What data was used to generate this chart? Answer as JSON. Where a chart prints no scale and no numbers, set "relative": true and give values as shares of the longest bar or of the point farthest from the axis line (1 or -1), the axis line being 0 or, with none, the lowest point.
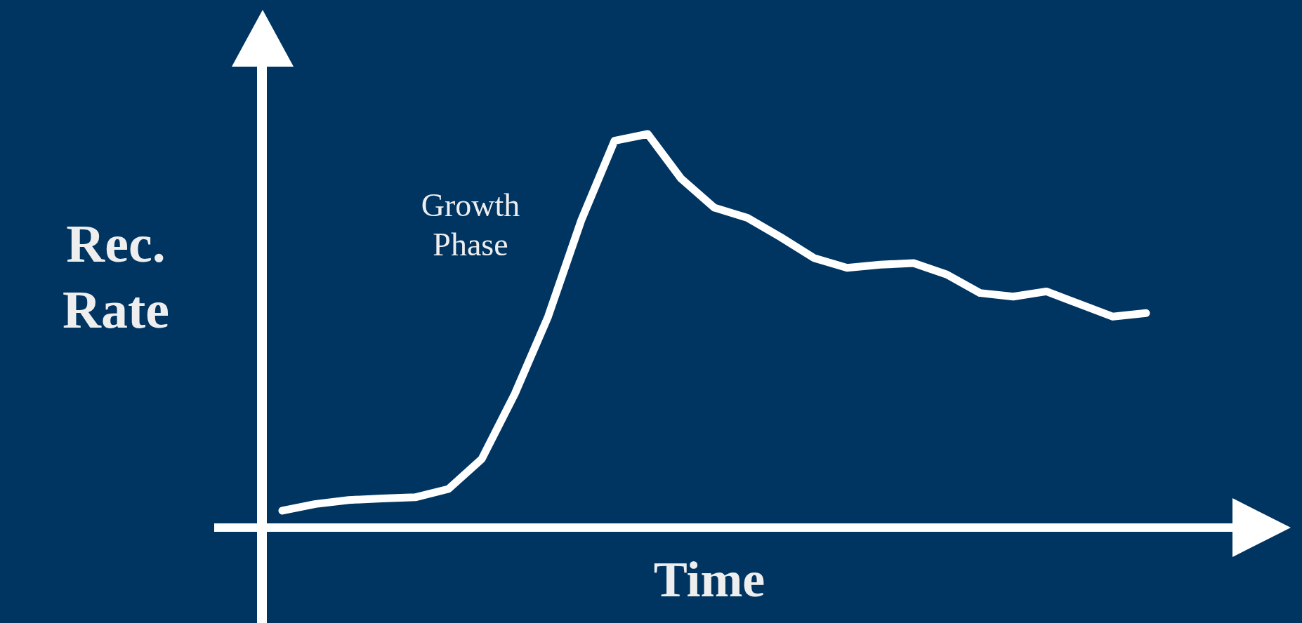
{
  "chart_data": {
    "type": "line",
    "relative": true,
    "xlabel": "Time",
    "ylabel": "Rec. Rate",
    "annotations": [
      "Growth Phase"
    ],
    "marker": "none",
    "categories": [
      null,
      null,
      null,
      null,
      null,
      null,
      null,
      null,
      null,
      null,
      null,
      null,
      null,
      null,
      null,
      null,
      null,
      null,
      null,
      null,
      null,
      null,
      null,
      null,
      null,
      null,
      null
    ],
    "series": [
      {
        "color": "#ffffff",
        "values": [
          0.043,
          0.06,
          0.07,
          0.074,
          0.077,
          0.098,
          0.174,
          0.34,
          0.536,
          0.781,
          0.983,
          1,
          0.887,
          0.813,
          0.787,
          0.738,
          0.685,
          0.66,
          0.668,
          0.672,
          0.643,
          0.596,
          0.587,
          0.6,
          0.568,
          0.536,
          0.545
        ]
      }
    ]
  }
}
